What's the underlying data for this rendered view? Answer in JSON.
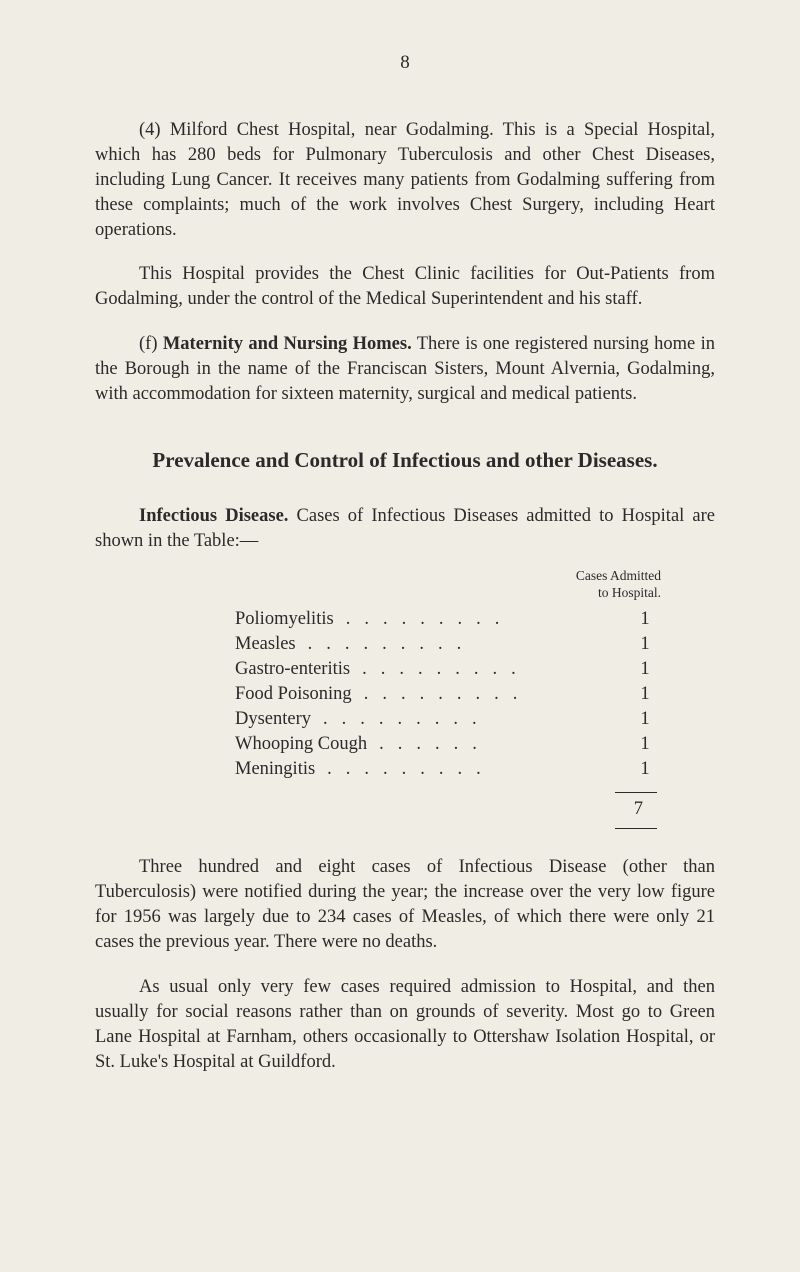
{
  "page_number": "8",
  "paragraphs": {
    "p1": "(4) Milford Chest Hospital, near Godalming. This is a Special Hospital, which has 280 beds for Pulmonary Tuberculosis and other Chest Diseases, including Lung Cancer. It receives many patients from Godalming suffering from these complaints; much of the work involves Chest Surgery, including Heart operations.",
    "p2": "This Hospital provides the Chest Clinic facilities for Out-Patients from Godalming, under the control of the Medical Superintendent and his staff.",
    "p3_prefix": "(f) ",
    "p3_bold": "Maternity and Nursing Homes.",
    "p3_rest": " There is one registered nursing home in the Borough in the name of the Franciscan Sisters, Mount Alvernia, Godalming, with accommodation for sixteen maternity, surgical and medical patients."
  },
  "section_heading": "Prevalence and Control of Infectious and other Diseases.",
  "sub_intro_bold": "Infectious Disease.",
  "sub_intro_rest": " Cases of Infectious Diseases admitted to Hospital are shown in the Table:—",
  "table": {
    "header_line1": "Cases Admitted",
    "header_line2": "to Hospital.",
    "rows": [
      {
        "label": "Poliomyelitis",
        "value": "1"
      },
      {
        "label": "Measles",
        "value": "1"
      },
      {
        "label": "Gastro-enteritis",
        "value": "1"
      },
      {
        "label": "Food Poisoning",
        "value": "1"
      },
      {
        "label": "Dysentery",
        "value": "1"
      },
      {
        "label": "Whooping Cough",
        "value": "1"
      },
      {
        "label": "Meningitis",
        "value": "1"
      }
    ],
    "total": "7"
  },
  "paragraphs2": {
    "p4": "Three hundred and eight cases of Infectious Disease (other than Tuberculosis) were notified during the year; the increase over the very low figure for 1956 was largely due to 234 cases of Measles, of which there were only 21 cases the previous year. There were no deaths.",
    "p5": "As usual only very few cases required admission to Hospital, and then usually for social reasons rather than on grounds of severity. Most go to Green Lane Hospital at Farnham, others occasionally to Ottershaw Isolation Hospital, or St. Luke's Hospital at Guildford."
  }
}
